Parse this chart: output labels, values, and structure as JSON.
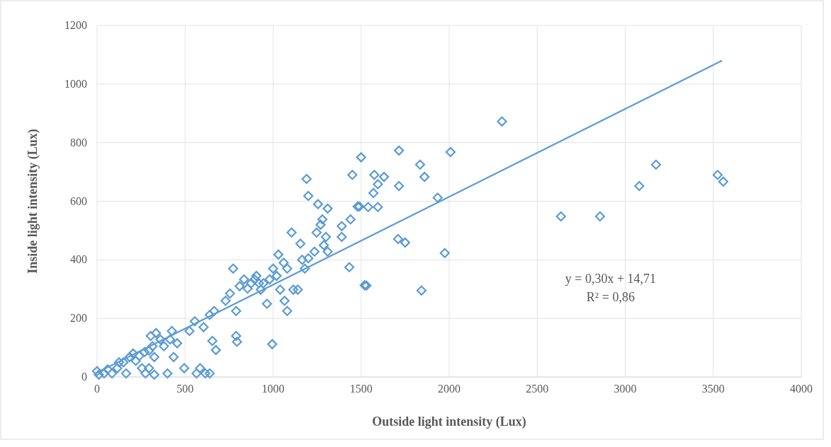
{
  "chart_data": {
    "type": "scatter",
    "xlabel": "Outside light intensity (Lux)",
    "ylabel": "Inside light intensity (Lux)",
    "xlim": [
      0,
      4000
    ],
    "xticks": [
      0,
      500,
      1000,
      1500,
      2000,
      2500,
      3000,
      3500,
      4000
    ],
    "ylim": [
      0,
      1200
    ],
    "yticks": [
      0,
      200,
      400,
      600,
      800,
      1000,
      1200
    ],
    "grid": true,
    "annotations": [
      "y = 0,30x + 14,71",
      "R² = 0,86"
    ],
    "series": [
      {
        "marker": "diamond",
        "color": "#5b9bd5",
        "x": [
          0,
          10,
          40,
          60,
          85,
          115,
          125,
          150,
          165,
          185,
          205,
          220,
          240,
          255,
          270,
          295,
          295,
          315,
          325,
          305,
          335,
          360,
          380,
          415,
          425,
          435,
          455,
          400,
          325,
          275,
          495,
          525,
          555,
          565,
          585,
          605,
          615,
          640,
          640,
          665,
          655,
          675,
          730,
          755,
          773,
          790,
          790,
          795,
          810,
          835,
          855,
          875,
          895,
          905,
          920,
          930,
          945,
          965,
          980,
          995,
          1000,
          1020,
          1030,
          1040,
          1060,
          1065,
          1080,
          1080,
          1105,
          1115,
          1140,
          1155,
          1165,
          1180,
          1190,
          1200,
          1200,
          1235,
          1247,
          1255,
          1270,
          1280,
          1288,
          1300,
          1310,
          1310,
          1390,
          1390,
          1433,
          1440,
          1450,
          1480,
          1490,
          1500,
          1520,
          1530,
          1540,
          1570,
          1575,
          1595,
          1595,
          1630,
          1710,
          1715,
          1715,
          1750,
          1835,
          1843,
          1860,
          1935,
          1975,
          2008,
          2300,
          2635,
          2857,
          3080,
          3175,
          3525,
          3557
        ],
        "values": [
          20,
          8,
          12,
          26,
          12,
          30,
          50,
          50,
          12,
          68,
          80,
          55,
          72,
          30,
          85,
          90,
          30,
          105,
          68,
          140,
          150,
          128,
          105,
          128,
          157,
          68,
          115,
          12,
          8,
          12,
          30,
          157,
          190,
          12,
          30,
          170,
          12,
          12,
          212,
          225,
          123,
          92,
          260,
          285,
          370,
          225,
          140,
          120,
          310,
          333,
          302,
          320,
          333,
          345,
          320,
          298,
          320,
          250,
          333,
          112,
          370,
          345,
          418,
          298,
          390,
          260,
          370,
          225,
          493,
          298,
          298,
          455,
          400,
          370,
          676,
          405,
          618,
          428,
          493,
          590,
          520,
          538,
          450,
          478,
          575,
          428,
          515,
          478,
          375,
          538,
          690,
          582,
          582,
          750,
          313,
          312,
          580,
          628,
          690,
          658,
          580,
          683,
          471,
          652,
          773,
          459,
          725,
          295,
          683,
          612,
          423,
          768,
          872,
          548,
          548,
          652,
          725,
          690,
          667
        ]
      },
      {
        "type": "line",
        "marker": "none",
        "color": "#5b9bd5",
        "x": [
          0,
          3550
        ],
        "values": [
          15,
          1080
        ]
      }
    ]
  }
}
